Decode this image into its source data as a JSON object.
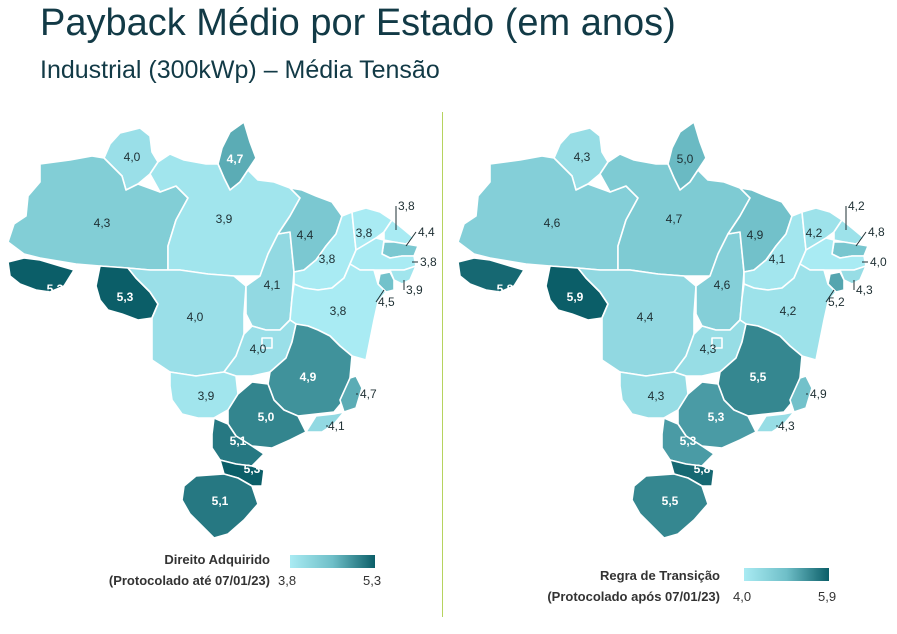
{
  "header": {
    "title": "Payback Médio por Estado (em anos)",
    "subtitle": "Industrial (300kWp) – Média Tensão"
  },
  "colors": {
    "scale_low": "#a9ebf3",
    "scale_mid": "#6fbfc8",
    "scale_high": "#0b5e68",
    "divider": "#b6d35f"
  },
  "maps": [
    {
      "id": "direito-adquirido",
      "legend": {
        "title_line1": "Direito Adquirido",
        "title_line2": "(Protocolado até 07/01/23)",
        "min_label": "3,8",
        "max_label": "5,3",
        "min": 3.8,
        "max": 5.3
      },
      "states": {
        "RR": "4,0",
        "AP": "4,7",
        "AM": "4,3",
        "PA": "3,9",
        "AC": "5,3",
        "RO": "5,3",
        "MT": "4,0",
        "TO": "4,1",
        "MA": "4,4",
        "PI": "3,8",
        "CE": "3,8",
        "RN": "3,8",
        "PB": "4,4",
        "PE": "3,8",
        "AL": "3,9",
        "SE": "4,5",
        "BA": "3,8",
        "GO": "4,0",
        "DF": "4,0",
        "MS": "3,9",
        "MG": "4,9",
        "ES": "4,7",
        "RJ": "4,1",
        "SP": "5,0",
        "PR": "5,1",
        "SC": "5,3",
        "RS": "5,1"
      }
    },
    {
      "id": "regra-de-transicao",
      "legend": {
        "title_line1": "Regra de Transição",
        "title_line2": "(Protocolado após 07/01/23)",
        "min_label": "4,0",
        "max_label": "5,9",
        "min": 4.0,
        "max": 5.9
      },
      "states": {
        "RR": "4,3",
        "AP": "5,0",
        "AM": "4,6",
        "PA": "4,7",
        "AC": "5,8",
        "RO": "5,9",
        "MT": "4,4",
        "TO": "4,6",
        "MA": "4,9",
        "PI": "4,1",
        "CE": "4,2",
        "RN": "4,2",
        "PB": "4,8",
        "PE": "4,0",
        "AL": "4,3",
        "SE": "5,2",
        "BA": "4,2",
        "GO": "4,3",
        "DF": "4,3",
        "MS": "4,3",
        "MG": "5,5",
        "ES": "4,9",
        "RJ": "4,3",
        "SP": "5,3",
        "PR": "5,3",
        "SC": "5,8",
        "RS": "5,5"
      }
    }
  ]
}
